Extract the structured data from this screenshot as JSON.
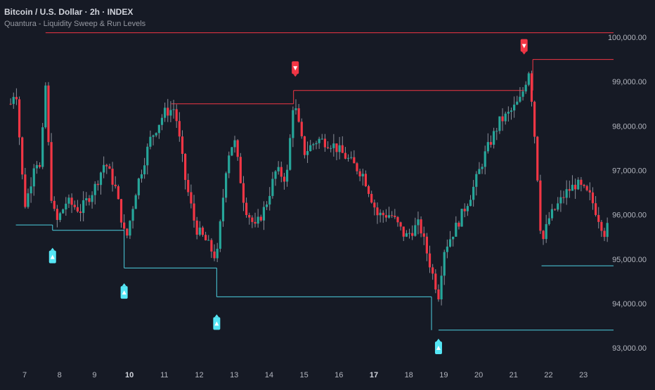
{
  "header": {
    "title": "Bitcoin / U.S. Dollar · 2h · INDEX",
    "indicator": "Quantura - Liquidity Sweep & Run Levels"
  },
  "colors": {
    "background": "#161a25",
    "up": "#26a69a",
    "down": "#f23645",
    "wick": "#8a8e99",
    "resistance_line": "#f23645",
    "support_line": "#4dd0e1",
    "sell_marker": "#f23645",
    "buy_marker": "#55e6f5",
    "axis_text": "#b2b5be"
  },
  "chart_data": {
    "type": "candlestick",
    "x_axis_labels": [
      "7",
      "8",
      "9",
      "10",
      "11",
      "12",
      "13",
      "14",
      "15",
      "16",
      "17",
      "18",
      "19",
      "20",
      "21",
      "22",
      "23"
    ],
    "bold_x_labels": [
      "10",
      "17"
    ],
    "y_axis_labels": [
      "100,000.00",
      "99,000.00",
      "98,000.00",
      "97,000.00",
      "96,000.00",
      "95,000.00",
      "94,000.00",
      "93,000.00"
    ],
    "y_ticks": [
      100000,
      99000,
      98000,
      97000,
      96000,
      95000,
      94000,
      93000
    ],
    "ylim": [
      92700,
      100500
    ],
    "price_path": [
      {
        "day": 6.6,
        "price": 98500
      },
      {
        "day": 6.75,
        "price": 98900
      },
      {
        "day": 6.9,
        "price": 97200
      },
      {
        "day": 7.0,
        "price": 96200
      },
      {
        "day": 7.15,
        "price": 96600
      },
      {
        "day": 7.3,
        "price": 97300
      },
      {
        "day": 7.45,
        "price": 97000
      },
      {
        "day": 7.6,
        "price": 98900
      },
      {
        "day": 7.75,
        "price": 96500
      },
      {
        "day": 7.9,
        "price": 95800
      },
      {
        "day": 8.2,
        "price": 96300
      },
      {
        "day": 8.6,
        "price": 96100
      },
      {
        "day": 9.0,
        "price": 96600
      },
      {
        "day": 9.3,
        "price": 97200
      },
      {
        "day": 9.6,
        "price": 96600
      },
      {
        "day": 9.9,
        "price": 95400
      },
      {
        "day": 10.2,
        "price": 96600
      },
      {
        "day": 10.6,
        "price": 97700
      },
      {
        "day": 11.0,
        "price": 98300
      },
      {
        "day": 11.3,
        "price": 98400
      },
      {
        "day": 11.6,
        "price": 96800
      },
      {
        "day": 11.9,
        "price": 95700
      },
      {
        "day": 12.2,
        "price": 95400
      },
      {
        "day": 12.5,
        "price": 95000
      },
      {
        "day": 12.8,
        "price": 97300
      },
      {
        "day": 13.0,
        "price": 97700
      },
      {
        "day": 13.3,
        "price": 96200
      },
      {
        "day": 13.6,
        "price": 95700
      },
      {
        "day": 13.9,
        "price": 96200
      },
      {
        "day": 14.2,
        "price": 97000
      },
      {
        "day": 14.5,
        "price": 96800
      },
      {
        "day": 14.7,
        "price": 98600
      },
      {
        "day": 15.0,
        "price": 97400
      },
      {
        "day": 15.4,
        "price": 97700
      },
      {
        "day": 15.8,
        "price": 97600
      },
      {
        "day": 16.2,
        "price": 97300
      },
      {
        "day": 16.7,
        "price": 96900
      },
      {
        "day": 17.1,
        "price": 96000
      },
      {
        "day": 17.5,
        "price": 96000
      },
      {
        "day": 17.9,
        "price": 95500
      },
      {
        "day": 18.3,
        "price": 95800
      },
      {
        "day": 18.7,
        "price": 94600
      },
      {
        "day": 18.85,
        "price": 94200
      },
      {
        "day": 19.0,
        "price": 95200
      },
      {
        "day": 19.4,
        "price": 95800
      },
      {
        "day": 19.8,
        "price": 96500
      },
      {
        "day": 20.2,
        "price": 97400
      },
      {
        "day": 20.6,
        "price": 98100
      },
      {
        "day": 20.9,
        "price": 98300
      },
      {
        "day": 21.2,
        "price": 98600
      },
      {
        "day": 21.45,
        "price": 99300
      },
      {
        "day": 21.65,
        "price": 97300
      },
      {
        "day": 21.8,
        "price": 95300
      },
      {
        "day": 22.0,
        "price": 95900
      },
      {
        "day": 22.5,
        "price": 96500
      },
      {
        "day": 22.8,
        "price": 96700
      },
      {
        "day": 23.2,
        "price": 96400
      },
      {
        "day": 23.6,
        "price": 95600
      },
      {
        "day": 23.75,
        "price": 95800
      }
    ],
    "resistance_levels": [
      {
        "start_day": 7.6,
        "end_day": 24.7,
        "price": 100100
      },
      {
        "start_day": 11.2,
        "end_day": 14.7,
        "price": 98500
      },
      {
        "start_day": 14.7,
        "end_day": 21.3,
        "price": 98800
      },
      {
        "start_day": 21.55,
        "end_day": 24.7,
        "price": 99500
      }
    ],
    "support_levels": [
      {
        "start_day": 6.75,
        "end_day": 7.8,
        "price": 95770
      },
      {
        "start_day": 7.8,
        "end_day": 9.85,
        "price": 95650
      },
      {
        "start_day": 9.85,
        "end_day": 12.5,
        "price": 94800
      },
      {
        "start_day": 12.5,
        "end_day": 18.65,
        "price": 94150
      },
      {
        "start_day": 18.85,
        "end_day": 24.7,
        "price": 93400
      },
      {
        "start_day": 21.8,
        "end_day": 24.7,
        "price": 94850
      }
    ],
    "sell_signals": [
      {
        "day": 14.75,
        "price": 99300
      },
      {
        "day": 21.3,
        "price": 99800
      }
    ],
    "buy_signals": [
      {
        "day": 7.8,
        "price": 95050
      },
      {
        "day": 9.85,
        "price": 94250
      },
      {
        "day": 12.5,
        "price": 93550
      },
      {
        "day": 18.85,
        "price": 93000
      }
    ]
  }
}
